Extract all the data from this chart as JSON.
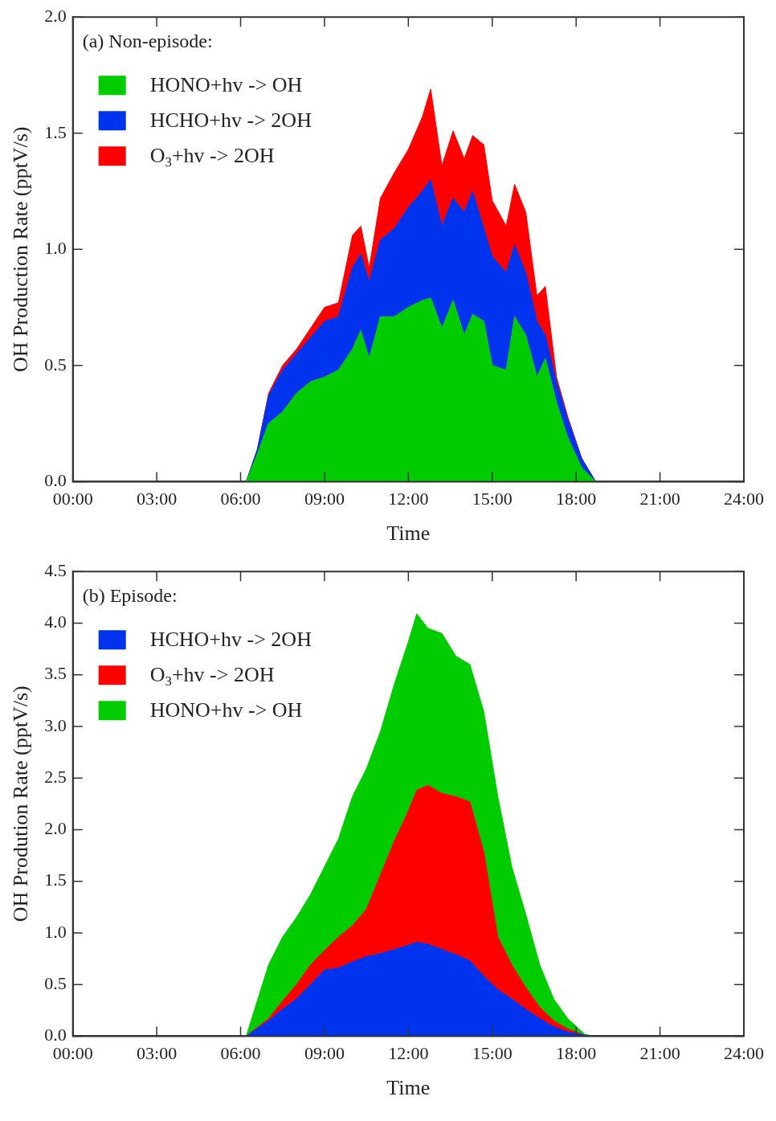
{
  "chart_data": [
    {
      "type": "area",
      "title": "(a) Non-episode:",
      "xlabel": "Time",
      "ylabel": "OH Production Rate (pptV/s)",
      "stacked": true,
      "legend": "top left",
      "grid": false,
      "x": [
        0,
        6.2,
        6.6,
        7,
        7.5,
        8,
        8.5,
        9,
        9.5,
        10,
        10.3,
        10.6,
        11,
        11.5,
        12,
        12.5,
        12.8,
        13.2,
        13.6,
        14,
        14.3,
        14.7,
        15,
        15.5,
        15.8,
        16.2,
        16.6,
        16.9,
        17.3,
        17.7,
        18.2,
        18.7,
        24
      ],
      "xlim": [
        0,
        24
      ],
      "xticks": [
        {
          "value": 0,
          "label": "00:00"
        },
        {
          "value": 3,
          "label": "03:00"
        },
        {
          "value": 6,
          "label": "06:00"
        },
        {
          "value": 9,
          "label": "09:00"
        },
        {
          "value": 12,
          "label": "12:00"
        },
        {
          "value": 15,
          "label": "15:00"
        },
        {
          "value": 18,
          "label": "18:00"
        },
        {
          "value": 21,
          "label": "21:00"
        },
        {
          "value": 24,
          "label": "24:00"
        }
      ],
      "ylim": [
        0,
        2
      ],
      "yticks": [
        {
          "value": 0,
          "label": "0.0"
        },
        {
          "value": 0.5,
          "label": "0.5"
        },
        {
          "value": 1,
          "label": "1.0"
        },
        {
          "value": 1.5,
          "label": "1.5"
        },
        {
          "value": 2,
          "label": "2.0"
        }
      ],
      "series": [
        {
          "name": "HONO+hv -> OH",
          "color": "#00cc00",
          "values": [
            0,
            0,
            0.12,
            0.25,
            0.3,
            0.38,
            0.43,
            0.45,
            0.48,
            0.57,
            0.65,
            0.53,
            0.71,
            0.71,
            0.75,
            0.78,
            0.79,
            0.66,
            0.78,
            0.63,
            0.72,
            0.69,
            0.5,
            0.48,
            0.71,
            0.63,
            0.45,
            0.53,
            0.34,
            0.19,
            0.06,
            0,
            0
          ]
        },
        {
          "name": "HCHO+hv -> 2OH",
          "color": "#0033ee",
          "values": [
            0,
            0,
            0.02,
            0.12,
            0.18,
            0.17,
            0.19,
            0.24,
            0.23,
            0.35,
            0.33,
            0.33,
            0.33,
            0.38,
            0.43,
            0.47,
            0.51,
            0.44,
            0.44,
            0.53,
            0.53,
            0.4,
            0.47,
            0.42,
            0.31,
            0.27,
            0.24,
            0.1,
            0.09,
            0.08,
            0.04,
            0,
            0
          ]
        },
        {
          "name": "O$_{3}$+hv -> 2OH",
          "color": "#ff0000",
          "values": [
            0,
            0,
            0,
            0.01,
            0.02,
            0.02,
            0.04,
            0.06,
            0.06,
            0.14,
            0.12,
            0.06,
            0.18,
            0.24,
            0.25,
            0.32,
            0.39,
            0.26,
            0.29,
            0.23,
            0.24,
            0.36,
            0.24,
            0.2,
            0.26,
            0.26,
            0.11,
            0.21,
            0.02,
            0.01,
            0,
            0,
            0
          ]
        }
      ]
    },
    {
      "type": "area",
      "title": "(b) Episode:",
      "xlabel": "Time",
      "ylabel": "OH Prodution Rate (pptV/s)",
      "stacked": true,
      "legend": "top left",
      "grid": false,
      "x": [
        0,
        6.2,
        7,
        7.5,
        8,
        8.5,
        9,
        9.5,
        10,
        10.5,
        11,
        11.5,
        12,
        12.3,
        12.7,
        13.2,
        13.7,
        14.2,
        14.7,
        15.2,
        15.7,
        16.2,
        16.7,
        17.2,
        17.7,
        18.3,
        18.6,
        24
      ],
      "xlim": [
        0,
        24
      ],
      "xticks": [
        {
          "value": 0,
          "label": "00:00"
        },
        {
          "value": 3,
          "label": "03:00"
        },
        {
          "value": 6,
          "label": "06:00"
        },
        {
          "value": 9,
          "label": "09:00"
        },
        {
          "value": 12,
          "label": "12:00"
        },
        {
          "value": 15,
          "label": "15:00"
        },
        {
          "value": 18,
          "label": "18:00"
        },
        {
          "value": 21,
          "label": "21:00"
        },
        {
          "value": 24,
          "label": "24:00"
        }
      ],
      "ylim": [
        0,
        4.5
      ],
      "yticks": [
        {
          "value": 0,
          "label": "0.0"
        },
        {
          "value": 0.5,
          "label": "0.5"
        },
        {
          "value": 1,
          "label": "1.0"
        },
        {
          "value": 1.5,
          "label": "1.5"
        },
        {
          "value": 2,
          "label": "2.0"
        },
        {
          "value": 2.5,
          "label": "2.5"
        },
        {
          "value": 3,
          "label": "3.0"
        },
        {
          "value": 3.5,
          "label": "3.5"
        },
        {
          "value": 4,
          "label": "4.0"
        },
        {
          "value": 4.5,
          "label": "4.5"
        }
      ],
      "series": [
        {
          "name": "HCHO+hv -> 2OH",
          "color": "#0033ee",
          "values": [
            0,
            0,
            0.15,
            0.26,
            0.36,
            0.5,
            0.64,
            0.66,
            0.72,
            0.77,
            0.8,
            0.84,
            0.88,
            0.91,
            0.89,
            0.84,
            0.79,
            0.73,
            0.58,
            0.45,
            0.36,
            0.26,
            0.17,
            0.09,
            0.04,
            0.01,
            0,
            0
          ]
        },
        {
          "name": "O$_{3}$+hv -> 2OH",
          "color": "#ff0000",
          "values": [
            0,
            0,
            0.02,
            0.08,
            0.14,
            0.19,
            0.19,
            0.3,
            0.35,
            0.46,
            0.76,
            1.05,
            1.3,
            1.47,
            1.54,
            1.51,
            1.53,
            1.54,
            1.2,
            0.51,
            0.33,
            0.21,
            0.11,
            0.06,
            0.03,
            0,
            0,
            0
          ]
        },
        {
          "name": "HONO+hv -> OH",
          "color": "#00cc00",
          "values": [
            0,
            0,
            0.52,
            0.62,
            0.65,
            0.68,
            0.81,
            0.95,
            1.25,
            1.36,
            1.39,
            1.52,
            1.64,
            1.71,
            1.52,
            1.55,
            1.36,
            1.33,
            1.36,
            1.36,
            0.95,
            0.71,
            0.41,
            0.21,
            0.1,
            0.01,
            0,
            0
          ]
        }
      ]
    }
  ]
}
